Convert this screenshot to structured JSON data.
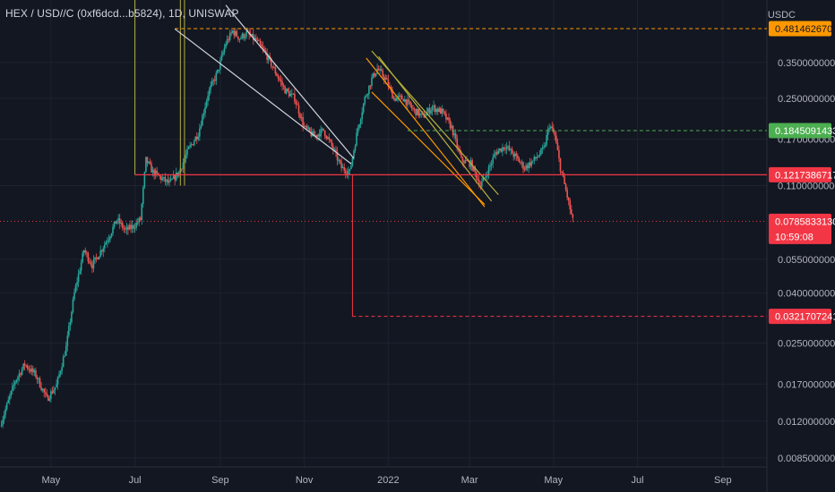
{
  "header": {
    "symbol_title": "HEX / USD//C (0xf6dcd...b5824), 1D, UNISWAP",
    "quote_currency": "USDC"
  },
  "colors": {
    "background": "#131722",
    "grid": "#1e2230",
    "axis_text": "#b2b5be",
    "up": "#26a69a",
    "down": "#ef5350",
    "orange": "#ff9800",
    "green_level": "#4caf50",
    "red_level": "#f23645",
    "white_line": "#d1d4dc",
    "olive_line": "#b5b03c"
  },
  "chart_data": {
    "type": "candlestick",
    "y_scale": "log",
    "ylim": [
      0.0078,
      0.63
    ],
    "x_range": [
      "2021-03-25",
      "2022-10-03"
    ],
    "x_ticks": [
      {
        "label": "May",
        "date": "2021-05-01"
      },
      {
        "label": "Jul",
        "date": "2021-07-01"
      },
      {
        "label": "Sep",
        "date": "2021-09-01"
      },
      {
        "label": "Nov",
        "date": "2021-11-01"
      },
      {
        "label": "2022",
        "date": "2022-01-01"
      },
      {
        "label": "Mar",
        "date": "2022-03-01"
      },
      {
        "label": "May",
        "date": "2022-05-01"
      },
      {
        "label": "Jul",
        "date": "2022-07-01"
      },
      {
        "label": "Sep",
        "date": "2022-09-01"
      }
    ],
    "y_ticks": [
      {
        "label": "0.3500000000",
        "value": 0.35
      },
      {
        "label": "0.2500000000",
        "value": 0.25
      },
      {
        "label": "0.1700000000",
        "value": 0.17
      },
      {
        "label": "0.1100000000",
        "value": 0.11
      },
      {
        "label": "0.0550000000",
        "value": 0.055
      },
      {
        "label": "0.0400000000",
        "value": 0.04
      },
      {
        "label": "0.0250000000",
        "value": 0.025
      },
      {
        "label": "0.0170000000",
        "value": 0.017
      },
      {
        "label": "0.0120000000",
        "value": 0.012
      },
      {
        "label": "0.0085000000",
        "value": 0.0085
      }
    ],
    "price_path": [
      [
        "2021-03-25",
        0.0115
      ],
      [
        "2021-04-05",
        0.0175
      ],
      [
        "2021-04-12",
        0.0205
      ],
      [
        "2021-04-20",
        0.0185
      ],
      [
        "2021-04-28",
        0.0148
      ],
      [
        "2021-05-05",
        0.0168
      ],
      [
        "2021-05-12",
        0.024
      ],
      [
        "2021-05-18",
        0.04
      ],
      [
        "2021-05-25",
        0.06
      ],
      [
        "2021-05-31",
        0.052
      ],
      [
        "2021-06-05",
        0.058
      ],
      [
        "2021-06-12",
        0.068
      ],
      [
        "2021-06-18",
        0.08
      ],
      [
        "2021-06-24",
        0.072
      ],
      [
        "2021-06-30",
        0.075
      ],
      [
        "2021-07-05",
        0.08
      ],
      [
        "2021-07-09",
        0.14
      ],
      [
        "2021-07-14",
        0.125
      ],
      [
        "2021-07-20",
        0.118
      ],
      [
        "2021-07-26",
        0.112
      ],
      [
        "2021-08-02",
        0.125
      ],
      [
        "2021-08-09",
        0.155
      ],
      [
        "2021-08-16",
        0.18
      ],
      [
        "2021-08-23",
        0.26
      ],
      [
        "2021-08-30",
        0.32
      ],
      [
        "2021-09-05",
        0.42
      ],
      [
        "2021-09-10",
        0.47
      ],
      [
        "2021-09-15",
        0.44
      ],
      [
        "2021-09-20",
        0.46
      ],
      [
        "2021-09-27",
        0.43
      ],
      [
        "2021-10-04",
        0.38
      ],
      [
        "2021-10-11",
        0.32
      ],
      [
        "2021-10-18",
        0.27
      ],
      [
        "2021-10-25",
        0.25
      ],
      [
        "2021-11-01",
        0.19
      ],
      [
        "2021-11-08",
        0.175
      ],
      [
        "2021-11-15",
        0.185
      ],
      [
        "2021-11-22",
        0.155
      ],
      [
        "2021-11-28",
        0.13
      ],
      [
        "2021-12-04",
        0.125
      ],
      [
        "2021-12-10",
        0.19
      ],
      [
        "2021-12-15",
        0.25
      ],
      [
        "2021-12-20",
        0.3
      ],
      [
        "2021-12-24",
        0.33
      ],
      [
        "2021-12-30",
        0.3
      ],
      [
        "2022-01-05",
        0.25
      ],
      [
        "2022-01-12",
        0.25
      ],
      [
        "2022-01-19",
        0.225
      ],
      [
        "2022-01-26",
        0.21
      ],
      [
        "2022-02-02",
        0.23
      ],
      [
        "2022-02-09",
        0.22
      ],
      [
        "2022-02-16",
        0.19
      ],
      [
        "2022-02-23",
        0.14
      ],
      [
        "2022-03-02",
        0.135
      ],
      [
        "2022-03-09",
        0.11
      ],
      [
        "2022-03-14",
        0.125
      ],
      [
        "2022-03-20",
        0.15
      ],
      [
        "2022-03-27",
        0.16
      ],
      [
        "2022-04-03",
        0.145
      ],
      [
        "2022-04-10",
        0.13
      ],
      [
        "2022-04-17",
        0.14
      ],
      [
        "2022-04-24",
        0.155
      ],
      [
        "2022-04-28",
        0.195
      ],
      [
        "2022-05-02",
        0.175
      ],
      [
        "2022-05-06",
        0.13
      ],
      [
        "2022-05-10",
        0.105
      ],
      [
        "2022-05-15",
        0.0786
      ]
    ],
    "drawings": {
      "horizontal_levels": [
        {
          "price": 0.48146267,
          "label": "0.4814626700",
          "color": "#ff9800",
          "dashed": true,
          "start": "2021-07-30"
        },
        {
          "price": 0.1845091433,
          "label": "0.1845091433",
          "color": "#4caf50",
          "dashed": true,
          "start": "2022-01-15"
        },
        {
          "price": 0.1217386717,
          "label": "0.1217386717",
          "color": "#f23645",
          "dashed": false,
          "start": "2021-07-01"
        },
        {
          "price": 0.0321707241,
          "label": "0.0321707241",
          "color": "#f23645",
          "dashed": true,
          "start": "2021-12-06"
        }
      ],
      "current_price": {
        "price": 0.078583313,
        "label": "0.0785833130",
        "countdown": "10:59:08",
        "color": "#f23645"
      },
      "vertical_lines": [
        {
          "date": "2021-07-01",
          "from": 0.1217,
          "to": 0.63,
          "color": "#b5b03c"
        },
        {
          "date": "2021-08-03",
          "from": 0.11,
          "to": 0.63,
          "color": "#b5b03c"
        },
        {
          "date": "2021-08-06",
          "from": 0.11,
          "to": 0.63,
          "color": "#b5b03c"
        },
        {
          "date": "2021-12-06",
          "from": 0.1217,
          "to": 0.0321,
          "color": "#f23645"
        }
      ],
      "trend_lines": [
        {
          "from": [
            "2021-07-30",
            0.48
          ],
          "to": [
            "2021-12-05",
            0.135
          ],
          "color": "#d1d4dc"
        },
        {
          "from": [
            "2021-09-05",
            0.6
          ],
          "to": [
            "2021-12-07",
            0.142
          ],
          "color": "#d1d4dc"
        },
        {
          "from": [
            "2021-12-20",
            0.39
          ],
          "to": [
            "2022-03-22",
            0.101
          ],
          "color": "#b5b03c"
        },
        {
          "from": [
            "2021-12-25",
            0.37
          ],
          "to": [
            "2022-03-17",
            0.095
          ],
          "color": "#b5b03c"
        },
        {
          "from": [
            "2021-12-16",
            0.365
          ],
          "to": [
            "2022-03-12",
            0.09
          ],
          "color": "#ff9800"
        },
        {
          "from": [
            "2021-12-20",
            0.265
          ],
          "to": [
            "2022-03-12",
            0.092
          ],
          "color": "#ff9800"
        }
      ]
    }
  }
}
